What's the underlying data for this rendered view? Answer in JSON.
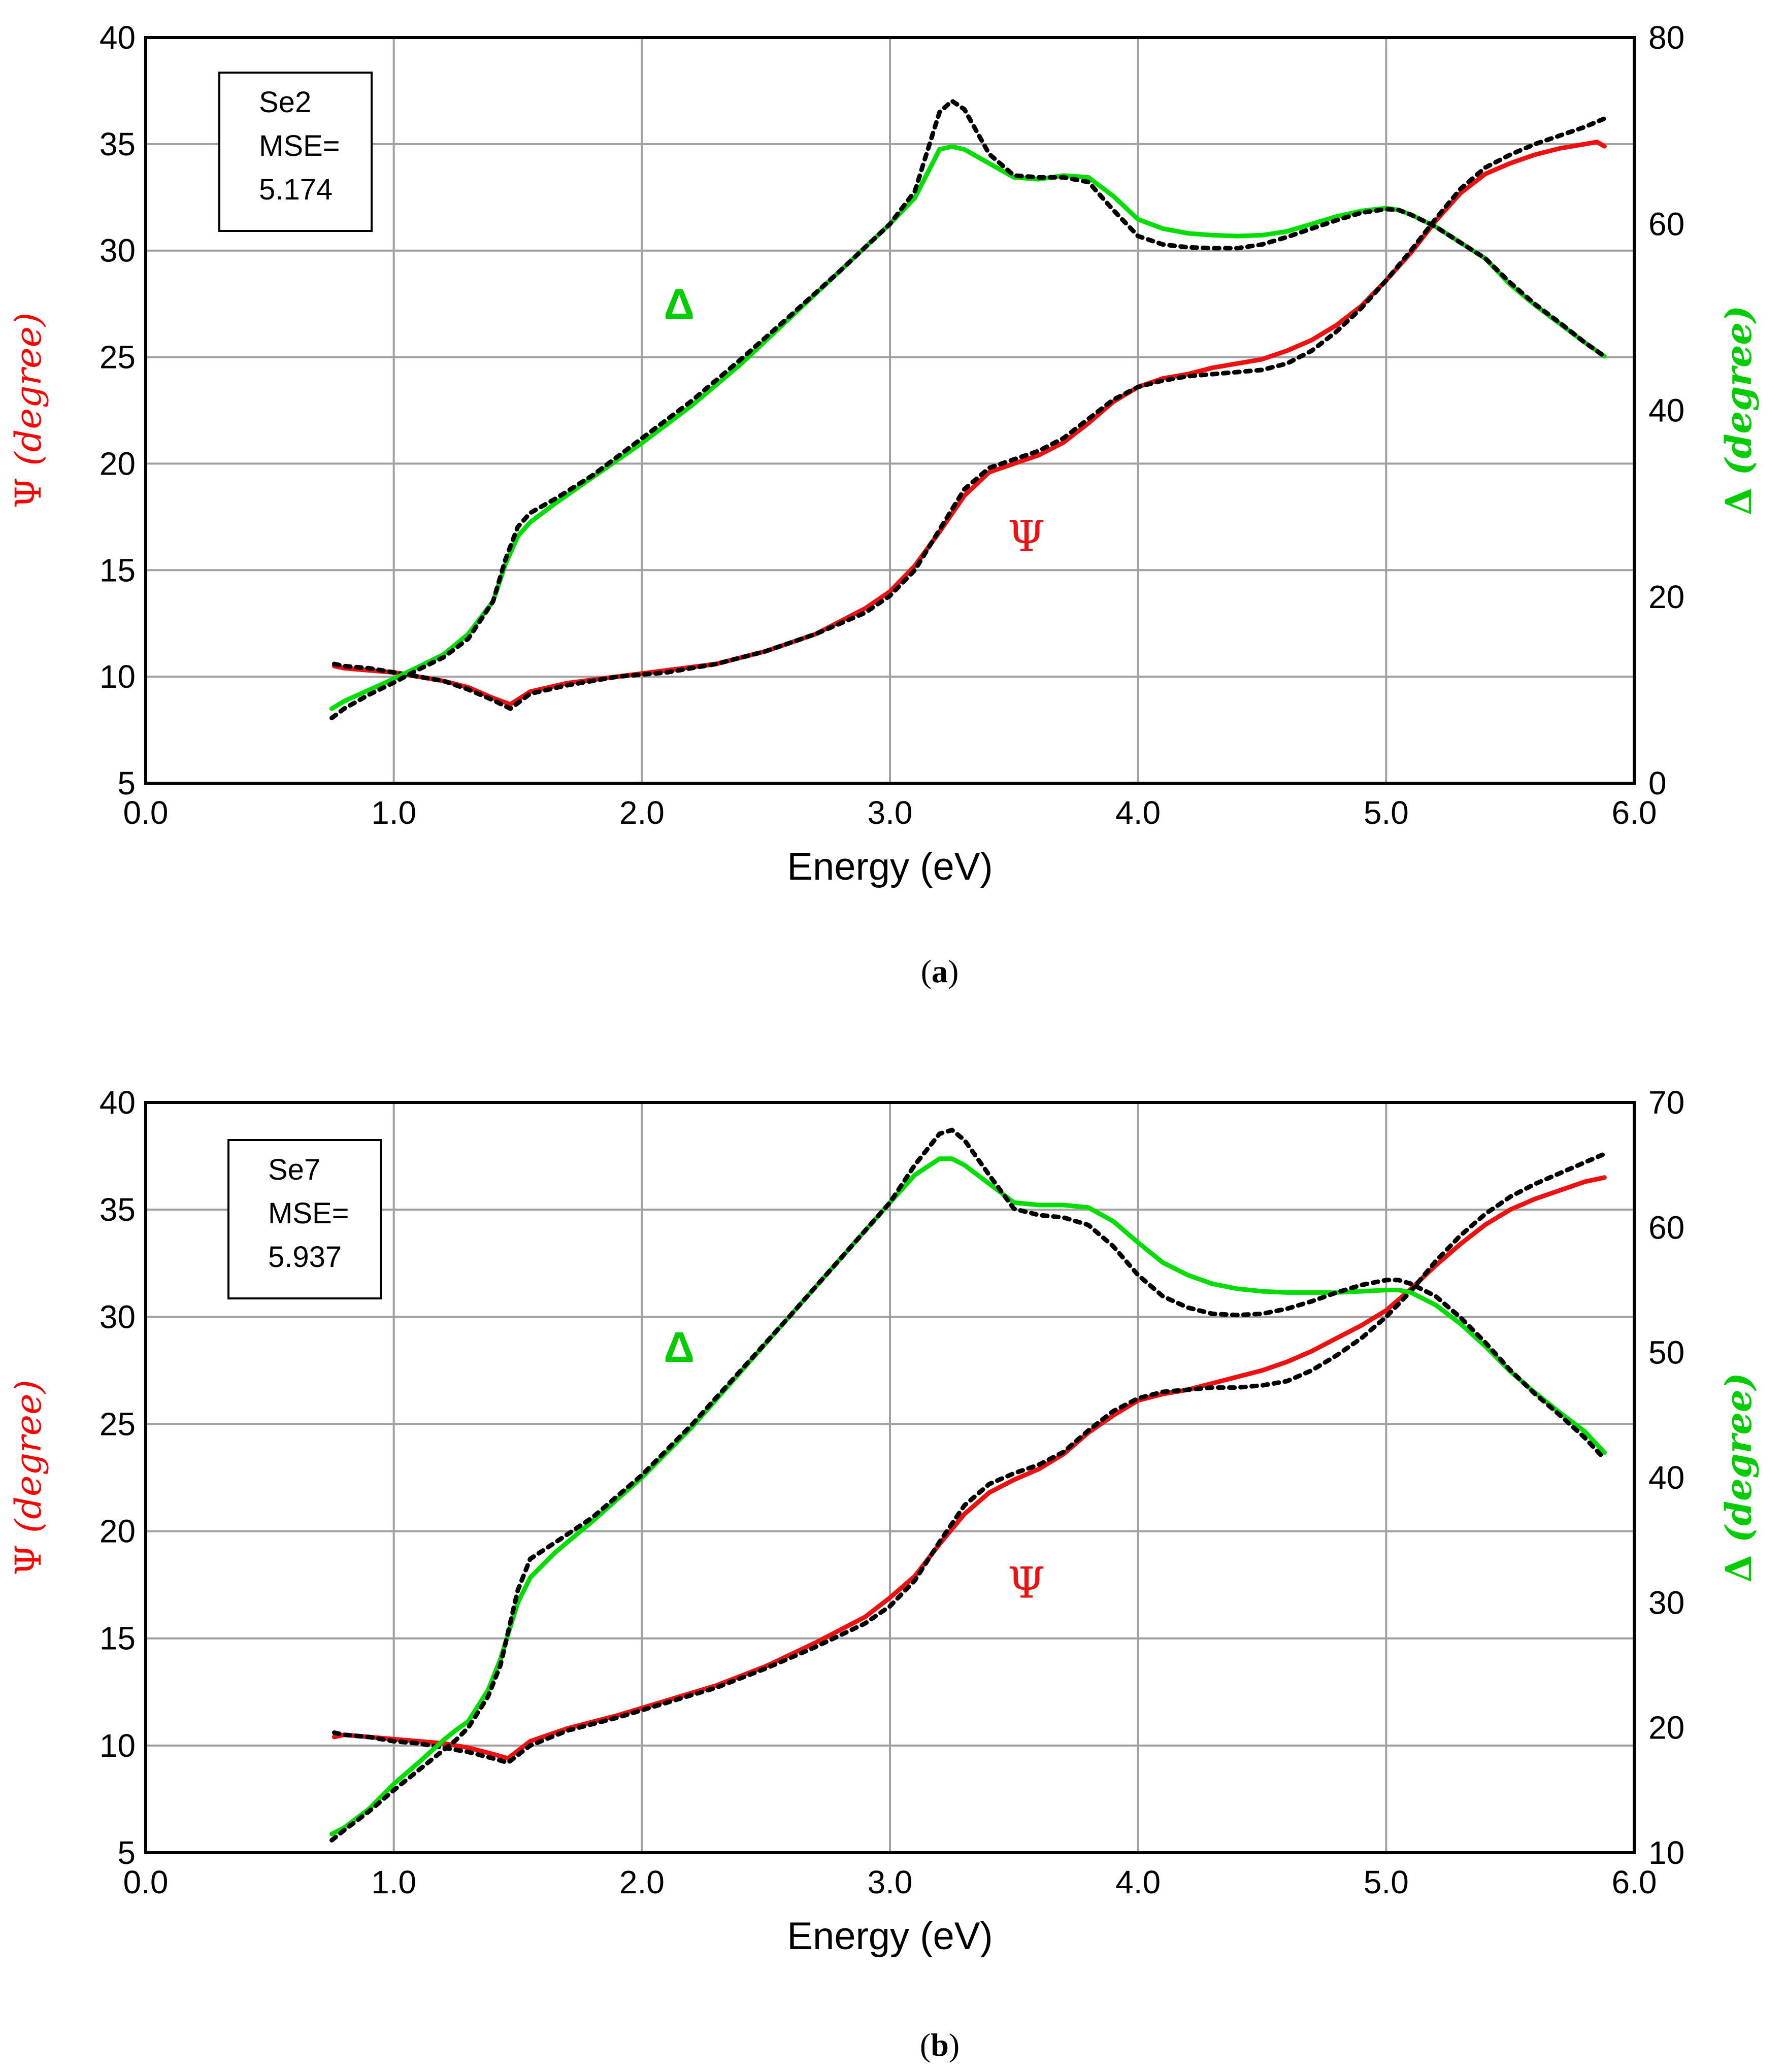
{
  "chart_data": [
    {
      "type": "line",
      "panel_label": "a",
      "xlabel": "Energy (eV)",
      "ylabel_left": "Ψ (degree)",
      "ylabel_left_symbol": "Ψ",
      "ylabel_left_unit": "degree",
      "ylabel_right": "Δ (degree)",
      "ylabel_right_symbol": "Δ",
      "ylabel_right_unit": "degree",
      "xlim": [
        0.0,
        6.0
      ],
      "xticks": [
        "0.0",
        "1.0",
        "2.0",
        "3.0",
        "4.0",
        "5.0",
        "6.0"
      ],
      "ylim_left": [
        5,
        40
      ],
      "yticks_left": [
        "5",
        "10",
        "15",
        "20",
        "25",
        "30",
        "35",
        "40"
      ],
      "ylim_right": [
        0,
        80
      ],
      "yticks_right": [
        "0",
        "20",
        "40",
        "60",
        "80"
      ],
      "grid": true,
      "legend": {
        "sample": "Se2",
        "mse_label": "MSE=",
        "mse_value": "5.174",
        "placement": "top-left"
      },
      "annotations": [
        {
          "text": "Δ",
          "x": 2.15,
          "y_axis": "left",
          "y": 26.8,
          "color": "#00cc00"
        },
        {
          "text": "Ψ",
          "x": 3.55,
          "y_axis": "left",
          "y": 15.9,
          "color": "#ee1111"
        }
      ],
      "series": [
        {
          "axis": "left",
          "color": "#ee1111",
          "style": "solid",
          "x": [
            0.76,
            0.8,
            0.9,
            1.0,
            1.1,
            1.2,
            1.3,
            1.4,
            1.47,
            1.55,
            1.7,
            1.9,
            2.1,
            2.3,
            2.5,
            2.7,
            2.9,
            3.0,
            3.1,
            3.2,
            3.3,
            3.4,
            3.5,
            3.6,
            3.7,
            3.8,
            3.9,
            4.0,
            4.1,
            4.2,
            4.3,
            4.4,
            4.5,
            4.6,
            4.7,
            4.8,
            4.9,
            5.0,
            5.1,
            5.2,
            5.3,
            5.4,
            5.5,
            5.6,
            5.7,
            5.8,
            5.85,
            5.88
          ],
          "y": [
            10.5,
            10.4,
            10.3,
            10.2,
            10.0,
            9.8,
            9.5,
            9.0,
            8.7,
            9.3,
            9.7,
            10.0,
            10.3,
            10.6,
            11.2,
            12.0,
            13.2,
            14.0,
            15.2,
            16.8,
            18.5,
            19.6,
            20.0,
            20.4,
            21.0,
            21.9,
            22.9,
            23.6,
            24.0,
            24.2,
            24.5,
            24.7,
            24.9,
            25.3,
            25.8,
            26.5,
            27.4,
            28.6,
            29.9,
            31.4,
            32.7,
            33.6,
            34.1,
            34.5,
            34.8,
            35.0,
            35.1,
            34.9
          ]
        },
        {
          "axis": "left",
          "color": "#000000",
          "style": "dotted",
          "x": [
            0.76,
            0.8,
            0.9,
            1.0,
            1.1,
            1.2,
            1.3,
            1.4,
            1.47,
            1.55,
            1.7,
            1.9,
            2.1,
            2.3,
            2.5,
            2.7,
            2.9,
            3.0,
            3.1,
            3.2,
            3.3,
            3.4,
            3.5,
            3.6,
            3.7,
            3.8,
            3.9,
            4.0,
            4.1,
            4.2,
            4.3,
            4.4,
            4.5,
            4.6,
            4.7,
            4.8,
            4.9,
            5.0,
            5.1,
            5.2,
            5.3,
            5.4,
            5.5,
            5.6,
            5.7,
            5.8,
            5.88
          ],
          "y": [
            10.6,
            10.5,
            10.4,
            10.2,
            10.0,
            9.8,
            9.4,
            8.9,
            8.5,
            9.2,
            9.6,
            10.0,
            10.2,
            10.6,
            11.2,
            12.0,
            13.0,
            13.8,
            15.0,
            16.9,
            18.8,
            19.8,
            20.2,
            20.6,
            21.2,
            22.1,
            23.0,
            23.6,
            23.9,
            24.1,
            24.2,
            24.3,
            24.4,
            24.7,
            25.3,
            26.2,
            27.3,
            28.6,
            30.0,
            31.5,
            32.9,
            33.9,
            34.5,
            35.0,
            35.4,
            35.8,
            36.2
          ]
        },
        {
          "axis": "right",
          "color": "#00dd00",
          "style": "solid",
          "x": [
            0.75,
            0.8,
            0.9,
            1.0,
            1.1,
            1.2,
            1.3,
            1.4,
            1.45,
            1.5,
            1.55,
            1.65,
            1.8,
            2.0,
            2.2,
            2.4,
            2.6,
            2.8,
            3.0,
            3.1,
            3.2,
            3.25,
            3.3,
            3.4,
            3.5,
            3.6,
            3.7,
            3.8,
            3.9,
            4.0,
            4.1,
            4.2,
            4.3,
            4.4,
            4.5,
            4.6,
            4.7,
            4.8,
            4.9,
            5.0,
            5.05,
            5.1,
            5.2,
            5.3,
            5.4,
            5.5,
            5.6,
            5.7,
            5.8,
            5.88
          ],
          "y": [
            8.0,
            8.8,
            10.0,
            11.2,
            12.5,
            13.8,
            16.0,
            19.5,
            23.5,
            26.5,
            28.0,
            30.0,
            32.8,
            36.5,
            40.5,
            45.0,
            50.0,
            55.0,
            60.0,
            62.8,
            68.0,
            68.3,
            68.0,
            66.5,
            65.0,
            64.8,
            65.2,
            65.0,
            63.0,
            60.5,
            59.5,
            59.0,
            58.8,
            58.7,
            58.8,
            59.2,
            60.0,
            60.8,
            61.4,
            61.7,
            61.5,
            61.0,
            59.7,
            58.0,
            56.3,
            53.5,
            51.3,
            49.3,
            47.3,
            45.8
          ]
        },
        {
          "axis": "right",
          "color": "#000000",
          "style": "dotted",
          "x": [
            0.75,
            0.8,
            0.9,
            1.0,
            1.1,
            1.2,
            1.3,
            1.4,
            1.45,
            1.5,
            1.55,
            1.65,
            1.8,
            2.0,
            2.2,
            2.4,
            2.6,
            2.8,
            3.0,
            3.1,
            3.2,
            3.25,
            3.3,
            3.4,
            3.5,
            3.6,
            3.7,
            3.8,
            3.9,
            4.0,
            4.1,
            4.2,
            4.3,
            4.4,
            4.5,
            4.6,
            4.7,
            4.8,
            4.9,
            5.0,
            5.05,
            5.1,
            5.2,
            5.3,
            5.4,
            5.5,
            5.6,
            5.7,
            5.8,
            5.88
          ],
          "y": [
            7.0,
            8.0,
            9.5,
            10.8,
            12.2,
            13.5,
            15.5,
            19.5,
            24.0,
            27.5,
            29.0,
            30.5,
            33.0,
            37.0,
            41.0,
            45.5,
            50.2,
            55.0,
            60.0,
            63.5,
            72.0,
            73.2,
            72.3,
            67.5,
            65.2,
            65.0,
            65.0,
            64.5,
            61.5,
            58.7,
            57.8,
            57.5,
            57.4,
            57.4,
            57.8,
            58.6,
            59.5,
            60.4,
            61.2,
            61.6,
            61.5,
            61.0,
            59.7,
            58.0,
            56.3,
            53.7,
            51.4,
            49.4,
            47.3,
            45.8
          ]
        }
      ]
    },
    {
      "type": "line",
      "panel_label": "b",
      "xlabel": "Energy (eV)",
      "ylabel_left": "Ψ (degree)",
      "ylabel_left_symbol": "Ψ",
      "ylabel_left_unit": "degree",
      "ylabel_right": "Δ (degree)",
      "ylabel_right_symbol": "Δ",
      "ylabel_right_unit": "degree",
      "xlim": [
        0.0,
        6.0
      ],
      "xticks": [
        "0.0",
        "1.0",
        "2.0",
        "3.0",
        "4.0",
        "5.0",
        "6.0"
      ],
      "ylim_left": [
        5,
        40
      ],
      "yticks_left": [
        "5",
        "10",
        "15",
        "20",
        "25",
        "30",
        "35",
        "40"
      ],
      "ylim_right": [
        10,
        70
      ],
      "yticks_right": [
        "10",
        "20",
        "30",
        "40",
        "50",
        "60",
        "70"
      ],
      "grid": true,
      "legend": {
        "sample": "Se7",
        "mse_label": "MSE=",
        "mse_value": "5.937",
        "placement": "top-left"
      },
      "annotations": [
        {
          "text": "Δ",
          "x": 2.15,
          "y_axis": "left",
          "y": 27.9,
          "color": "#00cc00"
        },
        {
          "text": "Ψ",
          "x": 3.55,
          "y_axis": "left",
          "y": 16.9,
          "color": "#ee1111"
        }
      ],
      "series": [
        {
          "axis": "left",
          "color": "#ee1111",
          "style": "solid",
          "x": [
            0.76,
            0.8,
            0.9,
            1.0,
            1.1,
            1.2,
            1.3,
            1.4,
            1.46,
            1.55,
            1.7,
            1.9,
            2.1,
            2.3,
            2.5,
            2.7,
            2.9,
            3.0,
            3.1,
            3.2,
            3.3,
            3.4,
            3.5,
            3.6,
            3.7,
            3.8,
            3.9,
            4.0,
            4.1,
            4.2,
            4.3,
            4.4,
            4.5,
            4.6,
            4.7,
            4.8,
            4.9,
            5.0,
            5.1,
            5.2,
            5.3,
            5.4,
            5.5,
            5.6,
            5.7,
            5.8,
            5.88
          ],
          "y": [
            10.4,
            10.5,
            10.4,
            10.3,
            10.2,
            10.1,
            9.9,
            9.6,
            9.4,
            10.2,
            10.8,
            11.4,
            12.1,
            12.8,
            13.7,
            14.8,
            16.0,
            16.9,
            17.9,
            19.4,
            20.8,
            21.8,
            22.4,
            22.9,
            23.6,
            24.6,
            25.4,
            26.1,
            26.4,
            26.6,
            26.9,
            27.2,
            27.5,
            27.9,
            28.4,
            29.0,
            29.6,
            30.3,
            31.3,
            32.4,
            33.4,
            34.3,
            35.0,
            35.5,
            35.9,
            36.3,
            36.5
          ]
        },
        {
          "axis": "left",
          "color": "#000000",
          "style": "dotted",
          "x": [
            0.76,
            0.8,
            0.9,
            1.0,
            1.1,
            1.2,
            1.3,
            1.4,
            1.46,
            1.55,
            1.7,
            1.9,
            2.1,
            2.3,
            2.5,
            2.7,
            2.9,
            3.0,
            3.1,
            3.2,
            3.3,
            3.4,
            3.5,
            3.6,
            3.7,
            3.8,
            3.9,
            4.0,
            4.1,
            4.2,
            4.3,
            4.4,
            4.5,
            4.6,
            4.7,
            4.8,
            4.9,
            5.0,
            5.1,
            5.2,
            5.3,
            5.4,
            5.5,
            5.6,
            5.7,
            5.8,
            5.88
          ],
          "y": [
            10.6,
            10.5,
            10.4,
            10.2,
            10.1,
            9.9,
            9.7,
            9.4,
            9.2,
            10.0,
            10.7,
            11.3,
            12.0,
            12.7,
            13.6,
            14.6,
            15.7,
            16.5,
            17.7,
            19.5,
            21.2,
            22.2,
            22.7,
            23.1,
            23.7,
            24.7,
            25.6,
            26.2,
            26.5,
            26.6,
            26.7,
            26.7,
            26.8,
            27.0,
            27.5,
            28.2,
            29.0,
            30.0,
            31.2,
            32.6,
            33.8,
            34.8,
            35.6,
            36.2,
            36.7,
            37.2,
            37.6
          ]
        },
        {
          "axis": "right",
          "color": "#00dd00",
          "style": "solid",
          "x": [
            0.75,
            0.8,
            0.9,
            1.0,
            1.1,
            1.2,
            1.25,
            1.3,
            1.38,
            1.43,
            1.5,
            1.55,
            1.65,
            1.8,
            2.0,
            2.2,
            2.4,
            2.6,
            2.8,
            3.0,
            3.1,
            3.2,
            3.25,
            3.3,
            3.4,
            3.5,
            3.6,
            3.7,
            3.8,
            3.9,
            4.0,
            4.1,
            4.2,
            4.3,
            4.4,
            4.5,
            4.6,
            4.7,
            4.8,
            4.9,
            5.0,
            5.05,
            5.1,
            5.2,
            5.3,
            5.4,
            5.5,
            5.6,
            5.7,
            5.8,
            5.88
          ],
          "y": [
            11.5,
            12.0,
            13.5,
            15.5,
            17.2,
            19.0,
            19.8,
            20.5,
            23.0,
            25.5,
            30.0,
            32.0,
            34.0,
            36.5,
            40.0,
            44.0,
            48.5,
            53.0,
            57.5,
            62.0,
            64.2,
            65.5,
            65.5,
            65.0,
            63.5,
            62.0,
            61.8,
            61.8,
            61.6,
            60.5,
            58.8,
            57.2,
            56.2,
            55.5,
            55.1,
            54.9,
            54.8,
            54.8,
            54.8,
            54.9,
            55.0,
            55.0,
            54.8,
            53.8,
            52.3,
            50.5,
            48.5,
            46.8,
            45.2,
            43.7,
            42.0
          ]
        },
        {
          "axis": "right",
          "color": "#000000",
          "style": "dotted",
          "x": [
            0.75,
            0.8,
            0.9,
            1.0,
            1.1,
            1.2,
            1.25,
            1.3,
            1.38,
            1.43,
            1.5,
            1.55,
            1.65,
            1.8,
            2.0,
            2.2,
            2.4,
            2.6,
            2.8,
            3.0,
            3.1,
            3.2,
            3.25,
            3.3,
            3.4,
            3.5,
            3.6,
            3.7,
            3.8,
            3.9,
            4.0,
            4.1,
            4.2,
            4.3,
            4.4,
            4.5,
            4.6,
            4.7,
            4.8,
            4.9,
            5.0,
            5.05,
            5.1,
            5.2,
            5.3,
            5.4,
            5.5,
            5.6,
            5.7,
            5.8,
            5.88
          ],
          "y": [
            11.0,
            11.8,
            13.3,
            15.0,
            16.6,
            18.2,
            19.0,
            20.0,
            22.5,
            25.0,
            31.0,
            33.5,
            34.8,
            36.8,
            40.2,
            44.2,
            48.6,
            53.0,
            57.5,
            62.0,
            65.0,
            67.5,
            67.8,
            67.0,
            64.2,
            61.5,
            61.0,
            60.8,
            60.2,
            58.5,
            56.2,
            54.5,
            53.6,
            53.1,
            53.0,
            53.1,
            53.5,
            54.1,
            54.8,
            55.4,
            55.8,
            55.8,
            55.5,
            54.5,
            52.8,
            50.8,
            48.6,
            46.7,
            45.0,
            43.2,
            41.5
          ]
        }
      ]
    }
  ]
}
